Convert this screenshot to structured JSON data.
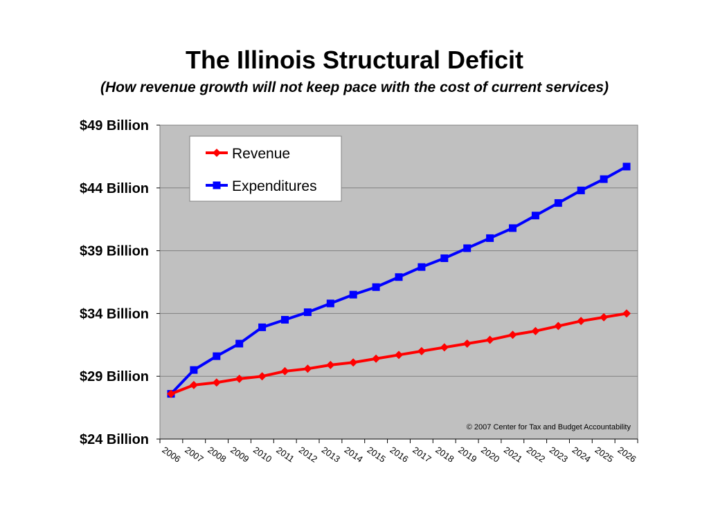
{
  "chart_data": {
    "type": "line",
    "title": "The Illinois Structural Deficit",
    "subtitle": "(How revenue growth will not keep pace with the cost of current services)",
    "categories": [
      "2006",
      "2007",
      "2008",
      "2009",
      "2010",
      "2011",
      "2012",
      "2013",
      "2014",
      "2015",
      "2016",
      "2017",
      "2018",
      "2019",
      "2020",
      "2021",
      "2022",
      "2023",
      "2024",
      "2025",
      "2026"
    ],
    "y_tick_values": [
      24,
      29,
      34,
      39,
      44,
      49
    ],
    "y_tick_labels": [
      "$24 Billion",
      "$29 Billion",
      "$34 Billion",
      "$39 Billion",
      "$44 Billion",
      "$49 Billion"
    ],
    "ylim": [
      24,
      49
    ],
    "grid": true,
    "legend_position": "top-left",
    "series": [
      {
        "name": "Revenue",
        "color": "#ff0000",
        "marker": "diamond",
        "values": [
          27.6,
          28.3,
          28.5,
          28.8,
          29.0,
          29.4,
          29.6,
          29.9,
          30.1,
          30.4,
          30.7,
          31.0,
          31.3,
          31.6,
          31.9,
          32.3,
          32.6,
          33.0,
          33.4,
          33.7,
          34.0
        ]
      },
      {
        "name": "Expenditures",
        "color": "#0000ff",
        "marker": "square",
        "values": [
          27.6,
          29.5,
          30.6,
          31.6,
          32.9,
          33.5,
          34.1,
          34.8,
          35.5,
          36.1,
          36.9,
          37.7,
          38.4,
          39.2,
          40.0,
          40.8,
          41.8,
          42.8,
          43.8,
          44.7,
          45.7
        ]
      }
    ],
    "annotation": "© 2007 Center for Tax and Budget Accountability",
    "plot_background": "#c0c0c0"
  }
}
